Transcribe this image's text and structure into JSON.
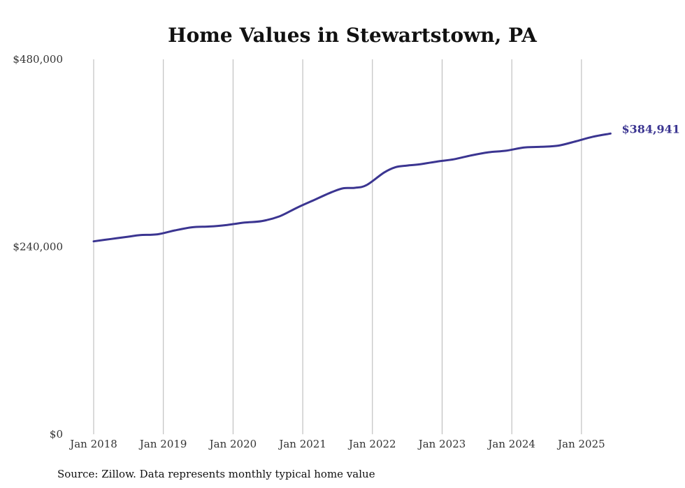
{
  "chart_data": {
    "type": "line",
    "title": "Home Values in Stewartstown, PA",
    "xlabel": "",
    "ylabel": "",
    "ylim": [
      0,
      480000
    ],
    "y_ticks": [
      {
        "value": 0,
        "label": "$0"
      },
      {
        "value": 240000,
        "label": "$240,000"
      },
      {
        "value": 480000,
        "label": "$480,000"
      }
    ],
    "x_ticks": [
      "Jan 2018",
      "Jan 2019",
      "Jan 2020",
      "Jan 2021",
      "Jan 2022",
      "Jan 2023",
      "Jan 2024",
      "Jan 2025"
    ],
    "grid": "vertical",
    "series": [
      {
        "color": "#3b3591",
        "end_label": "$384,941",
        "x": [
          "2018-01",
          "2018-04",
          "2018-07",
          "2018-09",
          "2018-12",
          "2019-03",
          "2019-06",
          "2019-09",
          "2019-12",
          "2020-03",
          "2020-06",
          "2020-09",
          "2020-12",
          "2021-03",
          "2021-06",
          "2021-08",
          "2021-10",
          "2021-12",
          "2022-03",
          "2022-05",
          "2022-07",
          "2022-09",
          "2022-12",
          "2023-03",
          "2023-06",
          "2023-09",
          "2023-12",
          "2024-03",
          "2024-06",
          "2024-09",
          "2024-12",
          "2025-03",
          "2025-06"
        ],
        "values": [
          247000,
          250000,
          253000,
          255000,
          256000,
          261000,
          265000,
          266000,
          268000,
          271000,
          273000,
          279000,
          290000,
          300000,
          310000,
          315000,
          315500,
          319000,
          335000,
          342000,
          344000,
          345500,
          349000,
          352000,
          357000,
          361000,
          363000,
          367000,
          368000,
          369500,
          375000,
          381000,
          384941
        ]
      }
    ],
    "source": "Source: Zillow. Data represents monthly typical home value"
  }
}
